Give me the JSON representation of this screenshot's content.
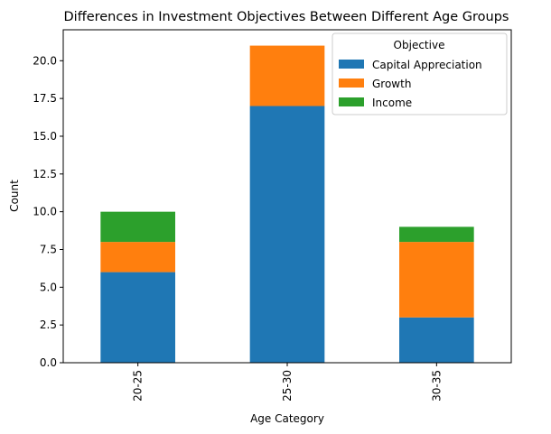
{
  "chart_data": {
    "type": "bar",
    "stacked": true,
    "title": "Differences in Investment Objectives Between Different Age Groups",
    "xlabel": "Age Category",
    "ylabel": "Count",
    "categories": [
      "20-25",
      "25-30",
      "30-35"
    ],
    "series": [
      {
        "name": "Capital Appreciation",
        "values": [
          6,
          17,
          3
        ],
        "color": "#1f77b4"
      },
      {
        "name": "Growth",
        "values": [
          2,
          4,
          5
        ],
        "color": "#ff7f0e"
      },
      {
        "name": "Income",
        "values": [
          2,
          0,
          1
        ],
        "color": "#2ca02c"
      }
    ],
    "ylim": [
      0,
      22.05
    ],
    "yticks": [
      0.0,
      2.5,
      5.0,
      7.5,
      10.0,
      12.5,
      15.0,
      17.5,
      20.0
    ],
    "ytick_labels": [
      "0.0",
      "2.5",
      "5.0",
      "7.5",
      "10.0",
      "12.5",
      "15.0",
      "17.5",
      "20.0"
    ],
    "legend": {
      "title": "Objective",
      "placement": "top-right"
    },
    "grid": false
  }
}
